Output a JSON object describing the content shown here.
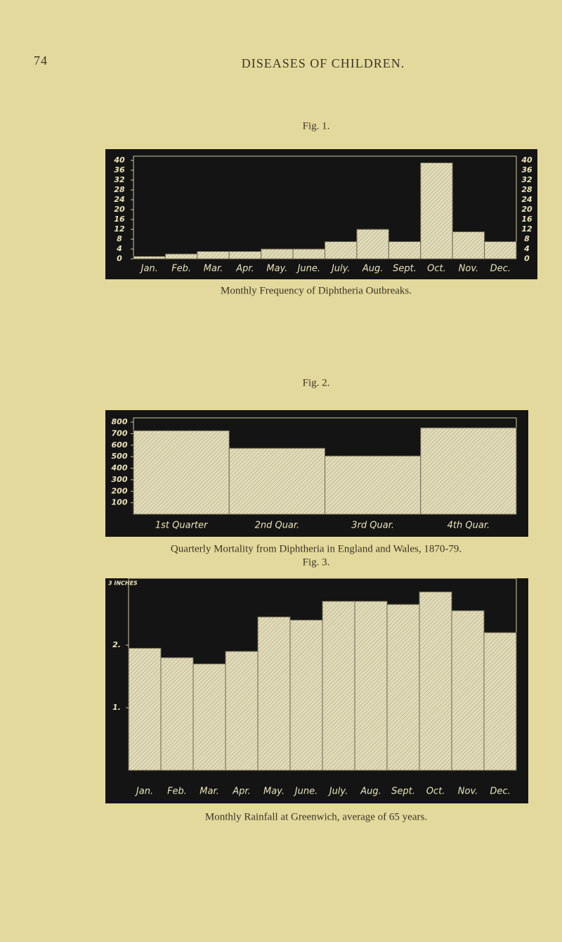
{
  "header": {
    "page_number": "74",
    "running_title": "DISEASES OF CHILDREN."
  },
  "chart_data": [
    {
      "type": "bar",
      "title": "Fig. 1.",
      "caption": "Monthly Frequency of Diphtheria Outbreaks.",
      "categories": [
        "Jan.",
        "Feb.",
        "Mar.",
        "Apr.",
        "May.",
        "June.",
        "July.",
        "Aug.",
        "Sept.",
        "Oct.",
        "Nov.",
        "Dec."
      ],
      "values": [
        1,
        2,
        3,
        3,
        4,
        4,
        7,
        12,
        7,
        39,
        11,
        7
      ],
      "color": "#e2dcb8",
      "ylim": [
        0,
        40
      ],
      "yticks": [
        0,
        4,
        8,
        12,
        16,
        20,
        24,
        28,
        32,
        36,
        40
      ],
      "right_axis": true
    },
    {
      "type": "bar",
      "title": "Fig. 2.",
      "caption": "Quarterly Mortality from Diphtheria in England and Wales, 1870-79.",
      "categories": [
        "1st Quarter",
        "2nd Quar.",
        "3rd Quar.",
        "4th Quar."
      ],
      "values": [
        725,
        573,
        506,
        750
      ],
      "color": "#e2dcb8",
      "ylim": [
        0,
        800
      ],
      "yticks": [
        100,
        200,
        300,
        400,
        500,
        600,
        700,
        800
      ],
      "right_axis": false
    },
    {
      "type": "bar",
      "title": "Fig. 3.",
      "caption": "Monthly Rainfall at Greenwich, average of 65 years.",
      "categories": [
        "Jan.",
        "Feb.",
        "Mar.",
        "Apr.",
        "May.",
        "June.",
        "July.",
        "Aug.",
        "Sept.",
        "Oct.",
        "Nov.",
        "Dec."
      ],
      "values": [
        1.95,
        1.8,
        1.7,
        1.9,
        2.45,
        2.4,
        2.7,
        2.7,
        2.65,
        2.85,
        2.55,
        2.2
      ],
      "color": "#e2dcb8",
      "ylim": [
        0,
        3
      ],
      "yticks": [
        {
          "value": 1,
          "label": "1."
        },
        {
          "value": 2,
          "label": "2."
        },
        {
          "value": 3,
          "label": "3 INCHES"
        }
      ],
      "right_axis": false
    }
  ]
}
